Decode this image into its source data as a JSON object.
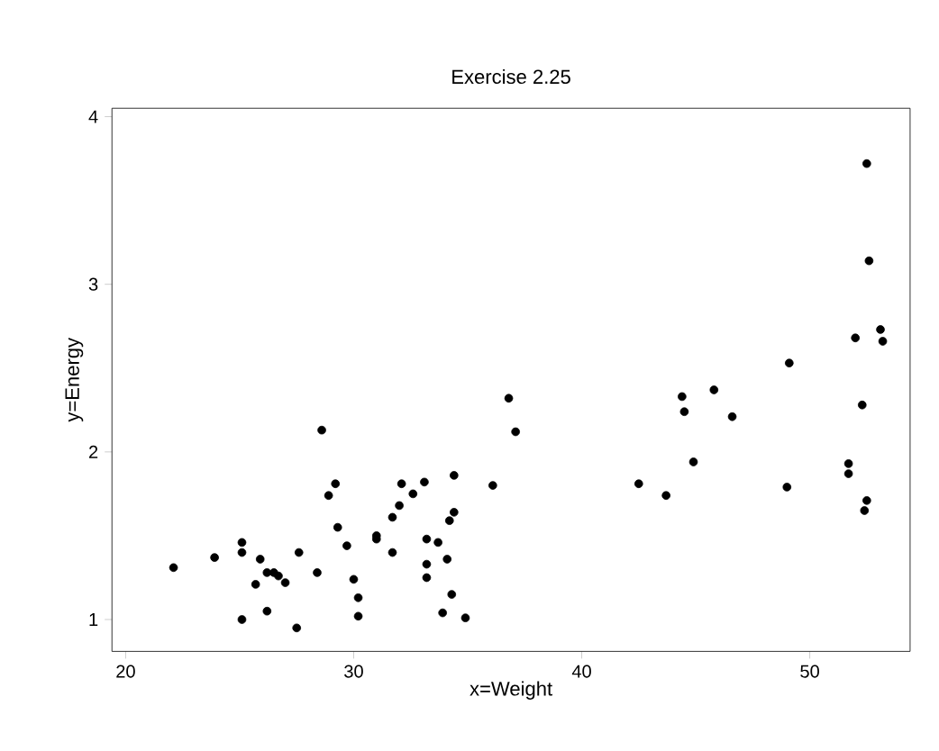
{
  "chart_data": {
    "type": "scatter",
    "title": "Exercise 2.25",
    "xlabel": "x=Weight",
    "ylabel": "y=Energy",
    "xlim": [
      19.4,
      54.4
    ],
    "ylim": [
      0.81,
      4.05
    ],
    "xticks": [
      20,
      30,
      40,
      50
    ],
    "yticks": [
      1,
      2,
      3,
      4
    ],
    "grid": false,
    "marker": "circle",
    "series": [
      {
        "color": "#000000",
        "x": [
          22.1,
          23.9,
          25.1,
          25.1,
          25.1,
          25.7,
          25.9,
          26.2,
          26.2,
          26.5,
          26.7,
          27.0,
          27.5,
          27.6,
          28.4,
          28.6,
          28.9,
          29.2,
          29.3,
          29.7,
          30.0,
          30.2,
          30.2,
          31.0,
          31.0,
          31.7,
          31.7,
          32.0,
          32.1,
          32.6,
          33.1,
          33.2,
          33.2,
          33.2,
          33.7,
          34.4,
          34.4,
          34.2,
          34.1,
          34.3,
          33.9,
          34.9,
          36.1,
          36.8,
          37.1,
          42.5,
          43.7,
          44.4,
          44.5,
          44.9,
          45.8,
          46.6,
          49.0,
          49.1,
          51.7,
          51.7,
          52.0,
          52.3,
          52.5,
          52.6,
          52.5,
          52.4,
          53.1,
          53.2
        ],
        "values": [
          1.31,
          1.37,
          1.46,
          1.4,
          1.0,
          1.21,
          1.36,
          1.28,
          1.05,
          1.28,
          1.26,
          1.22,
          0.95,
          1.4,
          1.28,
          2.13,
          1.74,
          1.81,
          1.55,
          1.44,
          1.24,
          1.13,
          1.02,
          1.5,
          1.48,
          1.61,
          1.4,
          1.68,
          1.81,
          1.75,
          1.82,
          1.48,
          1.33,
          1.25,
          1.46,
          1.86,
          1.64,
          1.59,
          1.36,
          1.15,
          1.04,
          1.01,
          1.8,
          2.32,
          2.12,
          1.81,
          1.74,
          2.33,
          2.24,
          1.94,
          2.37,
          2.21,
          1.79,
          2.53,
          1.93,
          1.87,
          2.68,
          2.28,
          3.72,
          3.14,
          1.71,
          1.65,
          2.73,
          2.66
        ]
      }
    ]
  }
}
